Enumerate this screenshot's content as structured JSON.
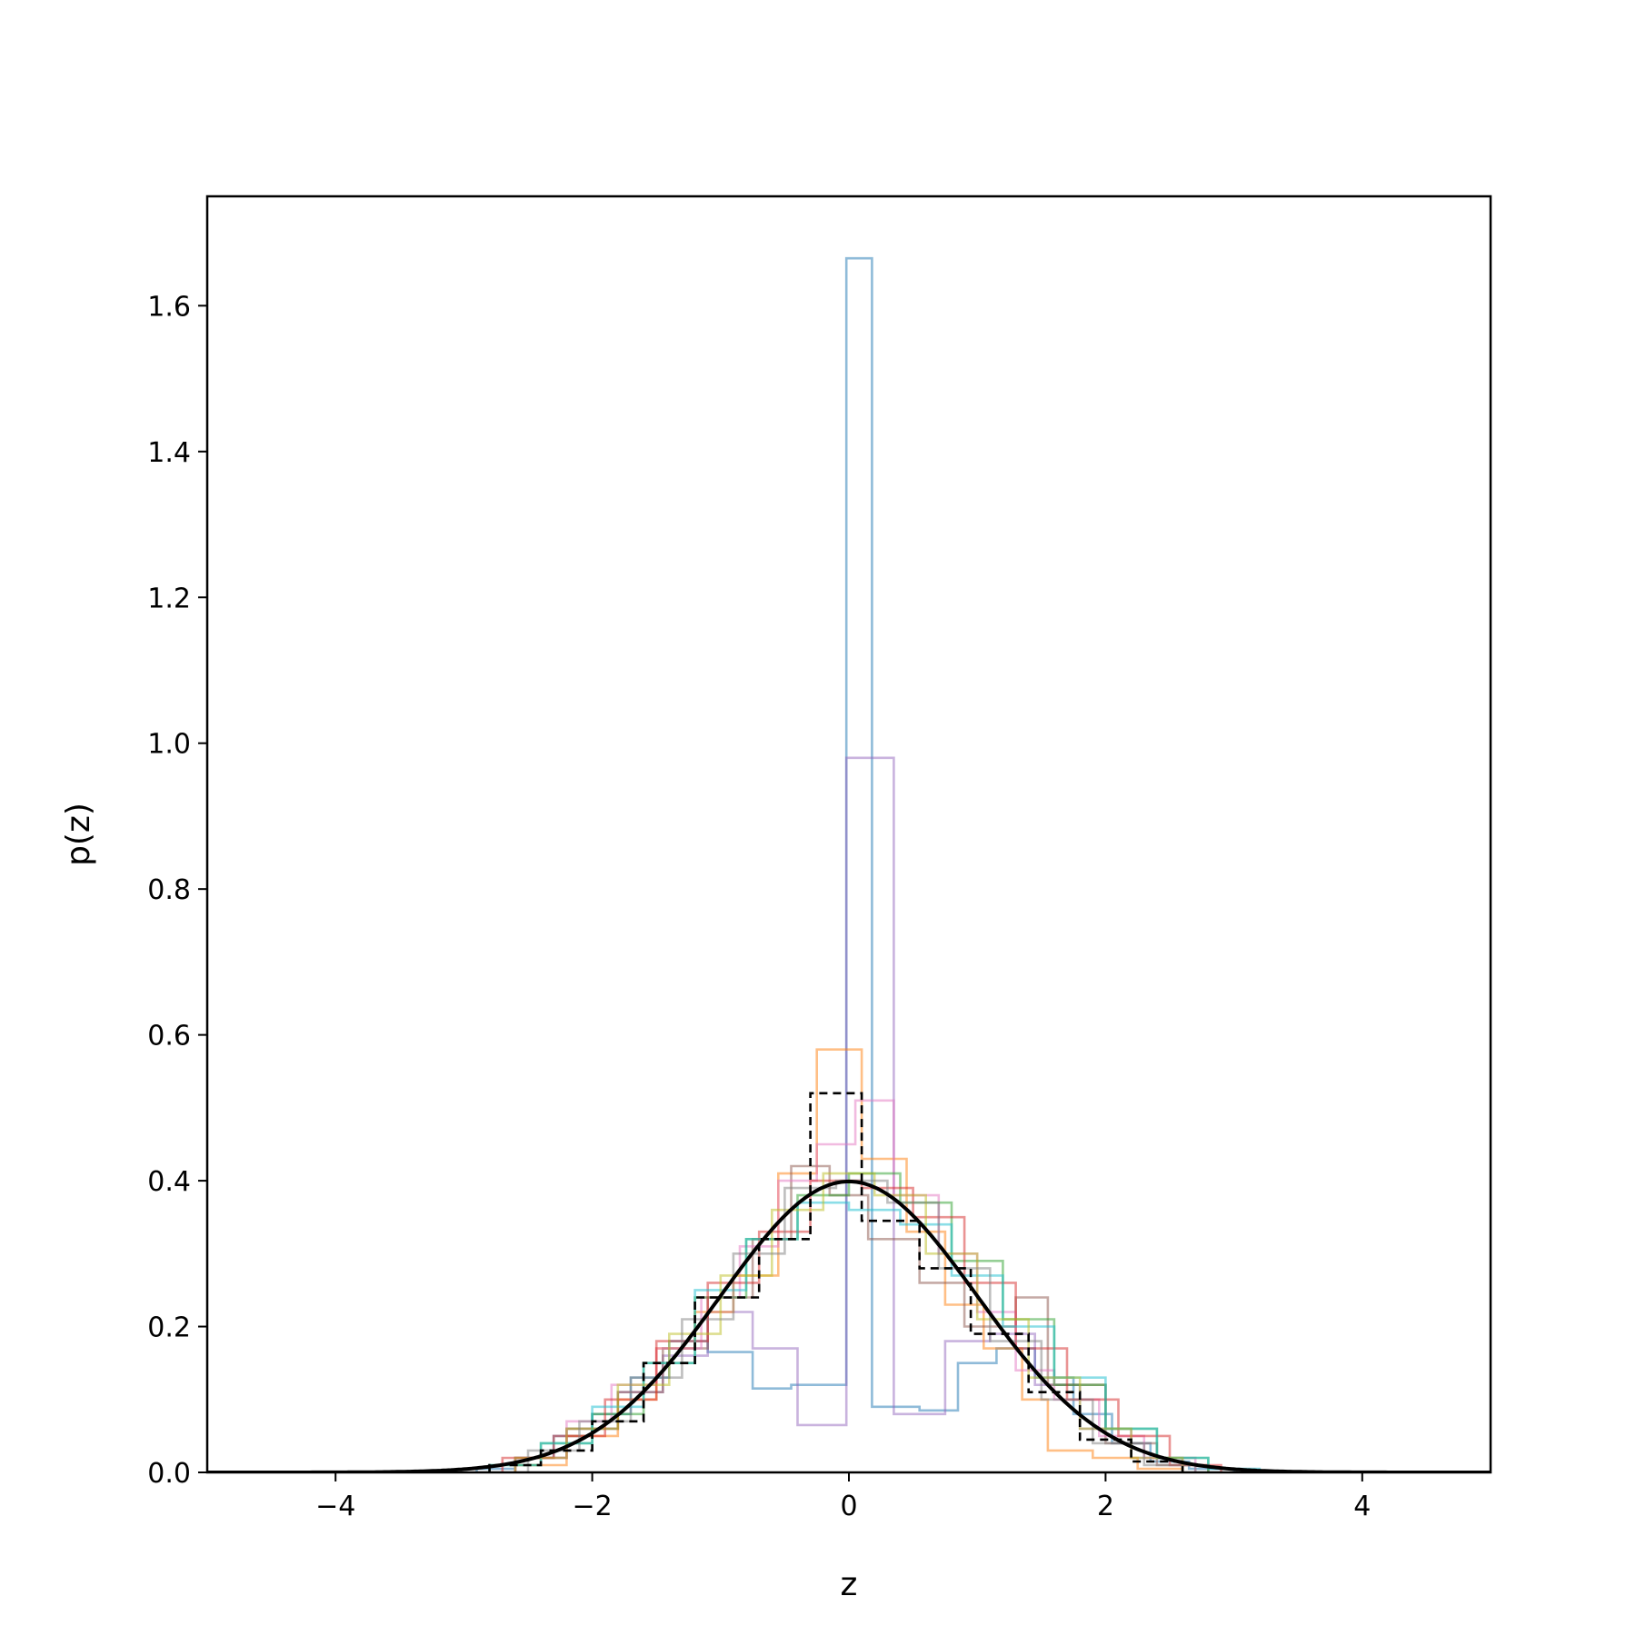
{
  "chart_data": {
    "type": "line",
    "title": "",
    "xlabel": "z",
    "ylabel": "p(z)",
    "xlim": [
      -5,
      5
    ],
    "ylim": [
      0,
      1.75
    ],
    "xticks": [
      -4,
      -2,
      0,
      2,
      4
    ],
    "xtick_labels": [
      "−4",
      "−2",
      "0",
      "2",
      "4"
    ],
    "yticks": [
      0.0,
      0.2,
      0.4,
      0.6,
      0.8,
      1.0,
      1.2,
      1.4,
      1.6
    ],
    "ytick_labels": [
      "0.0",
      "0.2",
      "0.4",
      "0.6",
      "0.8",
      "1.0",
      "1.2",
      "1.4",
      "1.6"
    ],
    "grid": false,
    "legend": "none",
    "reference_curve": {
      "kind": "standard-normal-pdf",
      "color": "#000000",
      "x": [
        -5,
        -4.5,
        -4,
        -3.5,
        -3,
        -2.75,
        -2.5,
        -2.25,
        -2,
        -1.75,
        -1.5,
        -1.25,
        -1,
        -0.75,
        -0.5,
        -0.25,
        0,
        0.25,
        0.5,
        0.75,
        1,
        1.25,
        1.5,
        1.75,
        2,
        2.25,
        2.5,
        2.75,
        3,
        3.5,
        4,
        4.5,
        5
      ],
      "y": [
        1.5e-06,
        1.6e-05,
        0.000134,
        0.000873,
        0.00443,
        0.00909,
        0.0175,
        0.0317,
        0.054,
        0.0863,
        0.1295,
        0.1826,
        0.242,
        0.3011,
        0.3521,
        0.3867,
        0.3989,
        0.3867,
        0.3521,
        0.3011,
        0.242,
        0.1826,
        0.1295,
        0.0863,
        0.054,
        0.0317,
        0.0175,
        0.00909,
        0.00443,
        0.000873,
        0.000134,
        1.6e-05,
        1.5e-06
      ]
    },
    "series": [
      {
        "color": "#1f77b4",
        "style": "step",
        "bin_edges": [
          -2.9,
          -2.6,
          -2.3,
          -2.0,
          -1.7,
          -1.4,
          -1.1,
          -0.75,
          -0.45,
          -0.02,
          0.18,
          0.55,
          0.85,
          1.15,
          1.45,
          1.75,
          2.05,
          2.35,
          2.65,
          3.0
        ],
        "values": [
          0.005,
          0.02,
          0.05,
          0.08,
          0.13,
          0.18,
          0.165,
          0.115,
          0.12,
          1.665,
          0.09,
          0.085,
          0.15,
          0.17,
          0.13,
          0.08,
          0.04,
          0.015,
          0.005
        ]
      },
      {
        "color": "#9467bd",
        "style": "step",
        "bin_edges": [
          -2.6,
          -2.2,
          -1.8,
          -1.45,
          -1.1,
          -0.75,
          -0.4,
          -0.02,
          0.35,
          0.75,
          1.1,
          1.45,
          1.8,
          2.2,
          2.6
        ],
        "values": [
          0.02,
          0.06,
          0.11,
          0.16,
          0.22,
          0.17,
          0.065,
          0.98,
          0.08,
          0.18,
          0.19,
          0.12,
          0.06,
          0.02
        ]
      },
      {
        "color": "#ff7f0e",
        "style": "step",
        "bin_edges": [
          -2.6,
          -2.2,
          -1.8,
          -1.5,
          -1.2,
          -0.9,
          -0.55,
          -0.25,
          0.1,
          0.45,
          0.75,
          1.05,
          1.35,
          1.55,
          1.9,
          2.25,
          2.6
        ],
        "values": [
          0.01,
          0.05,
          0.1,
          0.17,
          0.22,
          0.27,
          0.41,
          0.58,
          0.43,
          0.33,
          0.23,
          0.17,
          0.1,
          0.03,
          0.02,
          0.005
        ]
      },
      {
        "color": "#8c564b",
        "style": "step",
        "bin_edges": [
          -2.6,
          -2.2,
          -1.8,
          -1.45,
          -1.1,
          -0.75,
          -0.45,
          -0.15,
          0.15,
          0.55,
          0.9,
          1.3,
          1.55,
          2.0,
          2.4,
          2.8
        ],
        "values": [
          0.02,
          0.06,
          0.11,
          0.17,
          0.24,
          0.32,
          0.42,
          0.38,
          0.32,
          0.26,
          0.2,
          0.24,
          0.12,
          0.04,
          0.01
        ]
      },
      {
        "color": "#e377c2",
        "style": "step",
        "bin_edges": [
          -2.6,
          -2.2,
          -1.85,
          -1.5,
          -1.15,
          -0.85,
          -0.55,
          -0.25,
          0.05,
          0.35,
          0.7,
          1.0,
          1.3,
          1.6,
          1.95,
          2.3,
          2.7
        ],
        "values": [
          0.02,
          0.07,
          0.12,
          0.17,
          0.24,
          0.31,
          0.4,
          0.45,
          0.51,
          0.38,
          0.3,
          0.22,
          0.14,
          0.1,
          0.05,
          0.02
        ]
      },
      {
        "color": "#2ca02c",
        "style": "step",
        "bin_edges": [
          -2.8,
          -2.4,
          -2.0,
          -1.6,
          -1.2,
          -0.8,
          -0.4,
          0.0,
          0.4,
          0.8,
          1.2,
          1.6,
          2.0,
          2.4,
          2.8
        ],
        "values": [
          0.01,
          0.04,
          0.08,
          0.15,
          0.24,
          0.32,
          0.38,
          0.41,
          0.37,
          0.29,
          0.21,
          0.12,
          0.06,
          0.02
        ]
      },
      {
        "color": "#d62728",
        "style": "step",
        "bin_edges": [
          -2.7,
          -2.3,
          -1.9,
          -1.5,
          -1.1,
          -0.7,
          -0.3,
          0.1,
          0.5,
          0.9,
          1.3,
          1.7,
          2.1,
          2.5,
          2.9
        ],
        "values": [
          0.02,
          0.05,
          0.1,
          0.18,
          0.26,
          0.33,
          0.4,
          0.39,
          0.35,
          0.26,
          0.17,
          0.1,
          0.05,
          0.01
        ]
      },
      {
        "color": "#17becf",
        "style": "step",
        "bin_edges": [
          -2.8,
          -2.4,
          -2.0,
          -1.6,
          -1.2,
          -0.8,
          -0.4,
          0.0,
          0.4,
          0.8,
          1.2,
          1.6,
          2.0,
          2.4,
          2.8,
          3.2
        ],
        "values": [
          0.01,
          0.04,
          0.09,
          0.15,
          0.25,
          0.32,
          0.37,
          0.36,
          0.34,
          0.27,
          0.2,
          0.13,
          0.06,
          0.02,
          0.005
        ]
      },
      {
        "color": "#bcbd22",
        "style": "step",
        "bin_edges": [
          -2.6,
          -2.2,
          -1.8,
          -1.4,
          -1.0,
          -0.6,
          -0.2,
          0.2,
          0.6,
          1.0,
          1.4,
          1.8,
          2.2,
          2.6
        ],
        "values": [
          0.02,
          0.06,
          0.12,
          0.19,
          0.27,
          0.36,
          0.41,
          0.38,
          0.3,
          0.21,
          0.13,
          0.06,
          0.02
        ]
      },
      {
        "color": "#7f7f7f",
        "style": "step",
        "bin_edges": [
          -2.5,
          -2.1,
          -1.7,
          -1.3,
          -0.9,
          -0.5,
          -0.1,
          0.3,
          0.7,
          1.1,
          1.5,
          1.9,
          2.3,
          2.7
        ],
        "values": [
          0.03,
          0.07,
          0.13,
          0.21,
          0.3,
          0.39,
          0.4,
          0.37,
          0.28,
          0.18,
          0.1,
          0.04,
          0.01
        ]
      },
      {
        "color": "#000000",
        "style": "step-dashed",
        "bin_edges": [
          -2.8,
          -2.4,
          -2.0,
          -1.6,
          -1.2,
          -0.7,
          -0.3,
          0.1,
          0.55,
          0.95,
          1.4,
          1.8,
          2.2,
          2.6
        ],
        "values": [
          0.01,
          0.03,
          0.07,
          0.15,
          0.24,
          0.32,
          0.52,
          0.345,
          0.28,
          0.19,
          0.11,
          0.045,
          0.015
        ]
      }
    ]
  }
}
